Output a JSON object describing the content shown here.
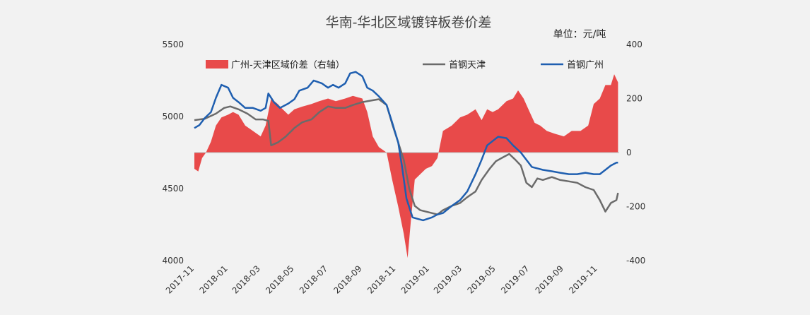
{
  "chart_data": {
    "type": "line",
    "title": "华南-华北区域镀锌板卷价差",
    "unit_label": "单位：元/吨",
    "colors": {
      "diff": "#e84a4a",
      "tianjin": "#6b6b6b",
      "guangzhou": "#1f5fb0"
    },
    "left_axis": {
      "ylim": [
        4000,
        5500
      ],
      "ticks": [
        "4000",
        "4500",
        "5000",
        "5500"
      ]
    },
    "right_axis": {
      "ylim": [
        -400,
        400
      ],
      "ticks": [
        "-400",
        "-200",
        "0",
        "200",
        "400"
      ]
    },
    "x_tick_labels": [
      "2017-11",
      "2018-01",
      "2018-03",
      "2018-05",
      "2018-07",
      "2018-09",
      "2018-11",
      "2019-01",
      "2019-03",
      "2019-05",
      "2019-07",
      "2019-09",
      "2019-11"
    ],
    "x_range": [
      "2017-11-01",
      "2019-12-10"
    ],
    "series": [
      {
        "key": "diff",
        "name": "广州-天津区域价差（右轴）",
        "axis": "right",
        "kind": "area",
        "points": [
          [
            "2017-11-01",
            -60
          ],
          [
            "2017-11-08",
            -70
          ],
          [
            "2017-11-15",
            -20
          ],
          [
            "2017-11-22",
            0
          ],
          [
            "2017-12-01",
            40
          ],
          [
            "2017-12-10",
            100
          ],
          [
            "2017-12-20",
            130
          ],
          [
            "2018-01-01",
            140
          ],
          [
            "2018-01-10",
            150
          ],
          [
            "2018-01-20",
            140
          ],
          [
            "2018-02-01",
            100
          ],
          [
            "2018-02-15",
            80
          ],
          [
            "2018-03-01",
            60
          ],
          [
            "2018-03-10",
            100
          ],
          [
            "2018-03-20",
            200
          ],
          [
            "2018-04-01",
            180
          ],
          [
            "2018-04-10",
            160
          ],
          [
            "2018-04-20",
            140
          ],
          [
            "2018-05-01",
            160
          ],
          [
            "2018-05-15",
            170
          ],
          [
            "2018-06-01",
            180
          ],
          [
            "2018-06-15",
            190
          ],
          [
            "2018-07-01",
            200
          ],
          [
            "2018-07-15",
            190
          ],
          [
            "2018-08-01",
            200
          ],
          [
            "2018-08-15",
            210
          ],
          [
            "2018-09-01",
            200
          ],
          [
            "2018-09-10",
            150
          ],
          [
            "2018-09-20",
            60
          ],
          [
            "2018-10-01",
            20
          ],
          [
            "2018-10-15",
            0
          ],
          [
            "2018-10-25",
            -100
          ],
          [
            "2018-11-05",
            -200
          ],
          [
            "2018-11-15",
            -300
          ],
          [
            "2018-11-22",
            -390
          ],
          [
            "2018-11-28",
            -250
          ],
          [
            "2018-12-05",
            -100
          ],
          [
            "2018-12-15",
            -80
          ],
          [
            "2018-12-25",
            -60
          ],
          [
            "2019-01-05",
            -50
          ],
          [
            "2019-01-15",
            -20
          ],
          [
            "2019-01-25",
            80
          ],
          [
            "2019-02-10",
            100
          ],
          [
            "2019-02-25",
            130
          ],
          [
            "2019-03-10",
            140
          ],
          [
            "2019-03-25",
            160
          ],
          [
            "2019-04-05",
            120
          ],
          [
            "2019-04-15",
            160
          ],
          [
            "2019-04-25",
            150
          ],
          [
            "2019-05-05",
            160
          ],
          [
            "2019-05-20",
            190
          ],
          [
            "2019-06-01",
            200
          ],
          [
            "2019-06-10",
            230
          ],
          [
            "2019-06-20",
            200
          ],
          [
            "2019-07-01",
            150
          ],
          [
            "2019-07-10",
            110
          ],
          [
            "2019-07-20",
            100
          ],
          [
            "2019-08-01",
            80
          ],
          [
            "2019-08-15",
            70
          ],
          [
            "2019-09-01",
            60
          ],
          [
            "2019-09-15",
            80
          ],
          [
            "2019-10-01",
            80
          ],
          [
            "2019-10-15",
            100
          ],
          [
            "2019-10-25",
            180
          ],
          [
            "2019-11-05",
            200
          ],
          [
            "2019-11-15",
            250
          ],
          [
            "2019-11-25",
            250
          ],
          [
            "2019-12-01",
            290
          ],
          [
            "2019-12-08",
            260
          ]
        ]
      },
      {
        "key": "tianjin",
        "name": "首钢天津",
        "axis": "left",
        "kind": "line",
        "points": [
          [
            "2017-11-01",
            4975
          ],
          [
            "2017-11-20",
            4985
          ],
          [
            "2017-12-10",
            5020
          ],
          [
            "2017-12-25",
            5060
          ],
          [
            "2018-01-05",
            5070
          ],
          [
            "2018-01-20",
            5050
          ],
          [
            "2018-02-05",
            5020
          ],
          [
            "2018-02-20",
            4980
          ],
          [
            "2018-03-05",
            4980
          ],
          [
            "2018-03-15",
            4970
          ],
          [
            "2018-03-20",
            4800
          ],
          [
            "2018-04-01",
            4820
          ],
          [
            "2018-04-15",
            4860
          ],
          [
            "2018-05-01",
            4920
          ],
          [
            "2018-05-15",
            4960
          ],
          [
            "2018-06-01",
            4980
          ],
          [
            "2018-06-15",
            5030
          ],
          [
            "2018-07-01",
            5070
          ],
          [
            "2018-07-15",
            5060
          ],
          [
            "2018-08-01",
            5060
          ],
          [
            "2018-08-15",
            5080
          ],
          [
            "2018-09-01",
            5100
          ],
          [
            "2018-09-15",
            5110
          ],
          [
            "2018-10-01",
            5120
          ],
          [
            "2018-10-15",
            5080
          ],
          [
            "2018-10-25",
            4950
          ],
          [
            "2018-11-05",
            4820
          ],
          [
            "2018-11-15",
            4700
          ],
          [
            "2018-11-25",
            4500
          ],
          [
            "2018-12-05",
            4380
          ],
          [
            "2018-12-15",
            4350
          ],
          [
            "2018-12-25",
            4340
          ],
          [
            "2019-01-05",
            4330
          ],
          [
            "2019-01-15",
            4320
          ],
          [
            "2019-01-25",
            4350
          ],
          [
            "2019-02-10",
            4380
          ],
          [
            "2019-02-25",
            4400
          ],
          [
            "2019-03-10",
            4440
          ],
          [
            "2019-03-25",
            4480
          ],
          [
            "2019-04-05",
            4560
          ],
          [
            "2019-04-20",
            4640
          ],
          [
            "2019-05-01",
            4690
          ],
          [
            "2019-05-15",
            4720
          ],
          [
            "2019-05-25",
            4740
          ],
          [
            "2019-06-05",
            4700
          ],
          [
            "2019-06-15",
            4660
          ],
          [
            "2019-06-25",
            4540
          ],
          [
            "2019-07-05",
            4510
          ],
          [
            "2019-07-15",
            4570
          ],
          [
            "2019-07-25",
            4560
          ],
          [
            "2019-08-10",
            4580
          ],
          [
            "2019-08-25",
            4560
          ],
          [
            "2019-09-10",
            4550
          ],
          [
            "2019-09-25",
            4540
          ],
          [
            "2019-10-10",
            4510
          ],
          [
            "2019-10-25",
            4490
          ],
          [
            "2019-11-05",
            4420
          ],
          [
            "2019-11-15",
            4340
          ],
          [
            "2019-11-25",
            4400
          ],
          [
            "2019-12-05",
            4420
          ],
          [
            "2019-12-08",
            4470
          ]
        ]
      },
      {
        "key": "guangzhou",
        "name": "首钢广州",
        "axis": "left",
        "kind": "line",
        "points": [
          [
            "2017-11-01",
            4920
          ],
          [
            "2017-11-10",
            4940
          ],
          [
            "2017-11-20",
            4990
          ],
          [
            "2017-12-01",
            5030
          ],
          [
            "2017-12-10",
            5130
          ],
          [
            "2017-12-20",
            5220
          ],
          [
            "2018-01-01",
            5200
          ],
          [
            "2018-01-10",
            5130
          ],
          [
            "2018-01-20",
            5100
          ],
          [
            "2018-02-01",
            5060
          ],
          [
            "2018-02-15",
            5060
          ],
          [
            "2018-03-01",
            5040
          ],
          [
            "2018-03-10",
            5060
          ],
          [
            "2018-03-15",
            5160
          ],
          [
            "2018-03-25",
            5100
          ],
          [
            "2018-04-05",
            5060
          ],
          [
            "2018-04-20",
            5090
          ],
          [
            "2018-05-01",
            5120
          ],
          [
            "2018-05-10",
            5180
          ],
          [
            "2018-05-25",
            5200
          ],
          [
            "2018-06-05",
            5250
          ],
          [
            "2018-06-20",
            5230
          ],
          [
            "2018-07-01",
            5200
          ],
          [
            "2018-07-10",
            5220
          ],
          [
            "2018-07-20",
            5200
          ],
          [
            "2018-08-01",
            5230
          ],
          [
            "2018-08-10",
            5300
          ],
          [
            "2018-08-20",
            5310
          ],
          [
            "2018-09-01",
            5280
          ],
          [
            "2018-09-10",
            5200
          ],
          [
            "2018-09-20",
            5180
          ],
          [
            "2018-10-01",
            5140
          ],
          [
            "2018-10-15",
            5080
          ],
          [
            "2018-10-25",
            4960
          ],
          [
            "2018-11-05",
            4820
          ],
          [
            "2018-11-12",
            4650
          ],
          [
            "2018-11-20",
            4430
          ],
          [
            "2018-12-01",
            4300
          ],
          [
            "2018-12-10",
            4290
          ],
          [
            "2018-12-20",
            4280
          ],
          [
            "2019-01-05",
            4300
          ],
          [
            "2019-01-15",
            4320
          ],
          [
            "2019-01-25",
            4330
          ],
          [
            "2019-02-10",
            4380
          ],
          [
            "2019-02-25",
            4420
          ],
          [
            "2019-03-10",
            4480
          ],
          [
            "2019-03-25",
            4600
          ],
          [
            "2019-04-05",
            4700
          ],
          [
            "2019-04-15",
            4800
          ],
          [
            "2019-04-25",
            4830
          ],
          [
            "2019-05-05",
            4860
          ],
          [
            "2019-05-20",
            4850
          ],
          [
            "2019-06-01",
            4800
          ],
          [
            "2019-06-15",
            4750
          ],
          [
            "2019-06-25",
            4700
          ],
          [
            "2019-07-05",
            4650
          ],
          [
            "2019-07-15",
            4640
          ],
          [
            "2019-07-25",
            4630
          ],
          [
            "2019-08-10",
            4620
          ],
          [
            "2019-08-25",
            4610
          ],
          [
            "2019-09-10",
            4600
          ],
          [
            "2019-09-25",
            4600
          ],
          [
            "2019-10-10",
            4610
          ],
          [
            "2019-10-25",
            4600
          ],
          [
            "2019-11-05",
            4600
          ],
          [
            "2019-11-15",
            4630
          ],
          [
            "2019-11-25",
            4660
          ],
          [
            "2019-12-05",
            4680
          ],
          [
            "2019-12-08",
            4680
          ]
        ]
      }
    ]
  }
}
